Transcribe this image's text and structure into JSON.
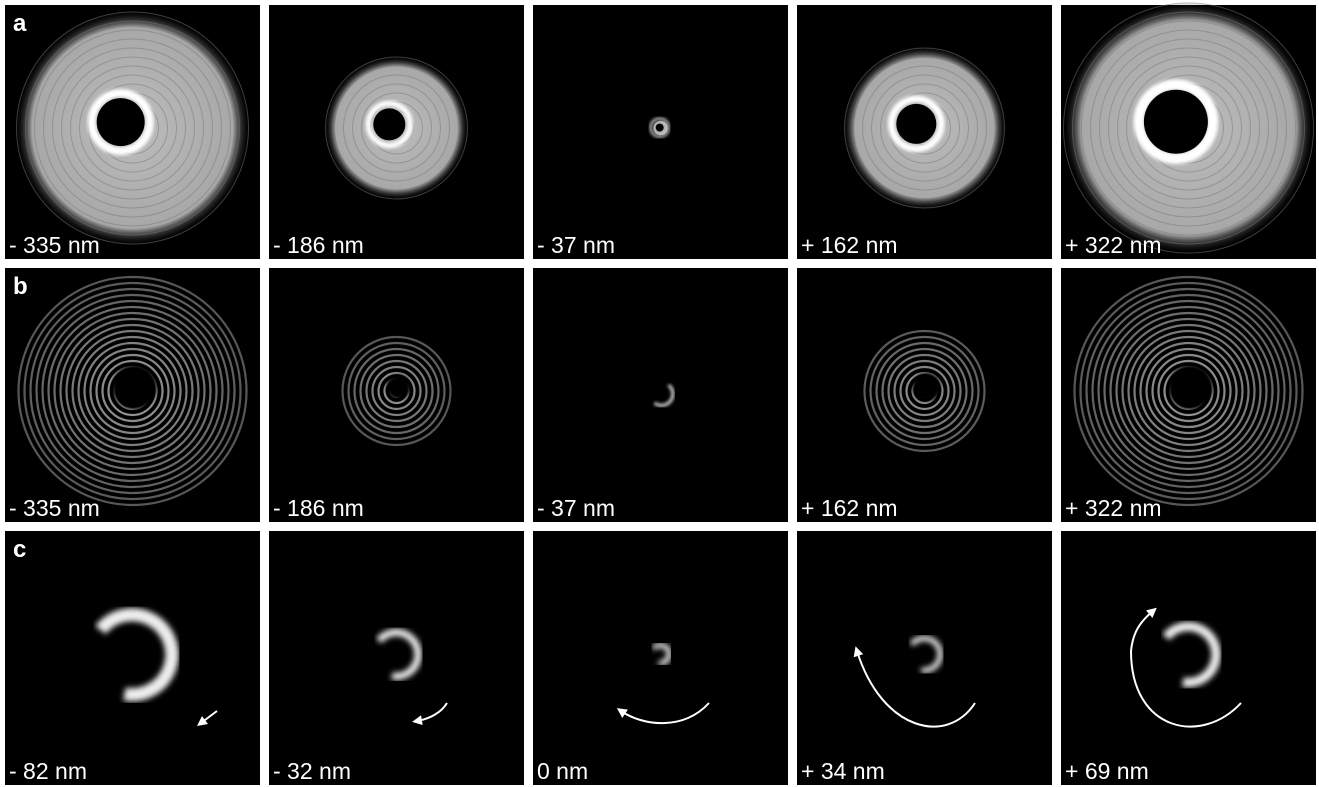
{
  "panels": [
    {
      "label": "a",
      "captions": [
        "- 335 nm",
        "- 186 nm",
        "- 37 nm",
        "+ 162 nm",
        "+ 322 nm"
      ]
    },
    {
      "label": "b",
      "captions": [
        "- 335 nm",
        "- 186 nm",
        "- 37 nm",
        "+ 162 nm",
        "+ 322 nm"
      ]
    },
    {
      "label": "c",
      "captions": [
        "- 82 nm",
        "- 32 nm",
        "0 nm",
        "+ 34 nm",
        "+ 69 nm"
      ]
    }
  ]
}
